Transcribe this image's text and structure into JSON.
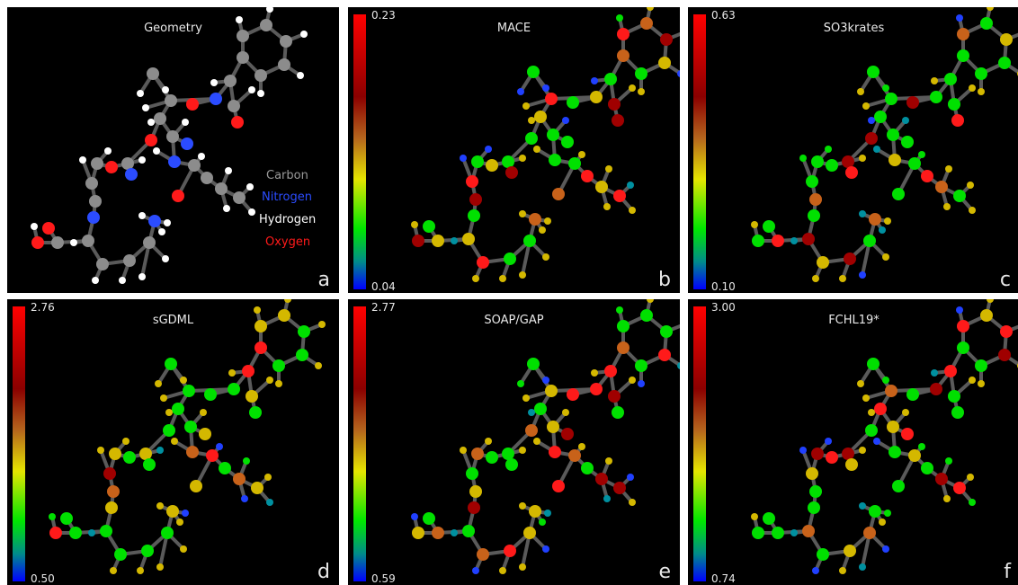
{
  "panels": [
    {
      "title": "Geometry",
      "letter": "a"
    },
    {
      "title": "MACE",
      "letter": "b",
      "max": "0.23",
      "min": "0.04"
    },
    {
      "title": "SO3krates",
      "letter": "c",
      "max": "0.63",
      "min": "0.10"
    },
    {
      "title": "sGDML",
      "letter": "d",
      "max": "2.76",
      "min": "0.50"
    },
    {
      "title": "SOAP/GAP",
      "letter": "e",
      "max": "2.77",
      "min": "0.59"
    },
    {
      "title": "FCHL19*",
      "letter": "f",
      "max": "3.00",
      "min": "0.74"
    }
  ],
  "legend": [
    {
      "label": "Carbon",
      "color": "#9a9a9a"
    },
    {
      "label": "Nitrogen",
      "color": "#2b4cff"
    },
    {
      "label": "Hydrogen",
      "color": "#ffffff"
    },
    {
      "label": "Oxygen",
      "color": "#ff1a1a"
    }
  ],
  "element_colors": {
    "C": "#8c8c8c",
    "N": "#2b4cff",
    "H": "#ffffff",
    "O": "#ff1a1a"
  },
  "error_colors": [
    "#ff1a1a",
    "#a00000",
    "#c8621a",
    "#d4b800",
    "#00e000",
    "#0090a0",
    "#2040ff"
  ]
}
